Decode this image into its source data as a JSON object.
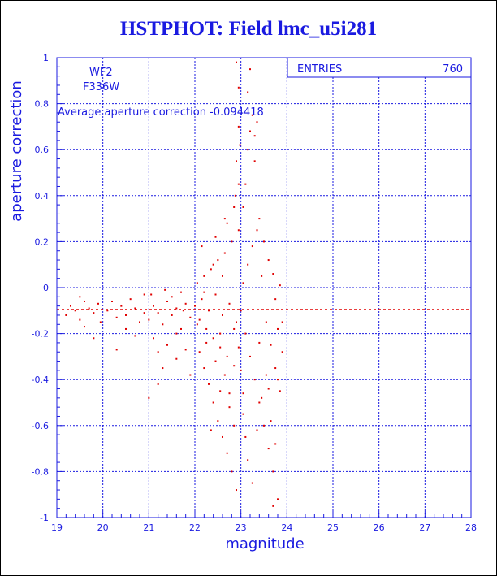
{
  "chart_data": {
    "type": "scatter",
    "title": "HSTPHOT: Field lmc_u5i281",
    "xlabel": "magnitude",
    "ylabel": "aperture correction",
    "xlim": [
      19,
      28
    ],
    "ylim": [
      -1,
      1
    ],
    "x_ticks": [
      19,
      20,
      21,
      22,
      23,
      24,
      25,
      26,
      27,
      28
    ],
    "y_ticks": [
      -1,
      -0.8,
      -0.6,
      -0.4,
      -0.2,
      0,
      0.2,
      0.4,
      0.6,
      0.8,
      1
    ],
    "y_tick_labels": [
      "-1",
      "-0.8",
      "-0.6",
      "-0.4",
      "-0.2",
      "0",
      "0.2",
      "0.4",
      "0.6",
      "0.8",
      "1"
    ],
    "grid": true,
    "annotations": {
      "camera": "WF2",
      "filter": "F336W",
      "average_text": "Average aperture correction -0.094418"
    },
    "stats_box": {
      "label": "ENTRIES",
      "value": "760",
      "placement": "top-right"
    },
    "reference_line": {
      "y": -0.094418,
      "style": "dashed",
      "color": "#e00000"
    },
    "colors": {
      "axis": "#1a1ae0",
      "points": "#e00000"
    },
    "series": [
      {
        "points": [
          [
            19.2,
            -0.12
          ],
          [
            19.3,
            -0.08
          ],
          [
            19.4,
            -0.1
          ],
          [
            19.5,
            -0.14
          ],
          [
            19.6,
            -0.06
          ],
          [
            19.7,
            -0.09
          ],
          [
            19.8,
            -0.11
          ],
          [
            19.9,
            -0.07
          ],
          [
            19.95,
            -0.15
          ],
          [
            19.6,
            -0.17
          ],
          [
            19.8,
            -0.22
          ],
          [
            19.5,
            -0.04
          ],
          [
            20.1,
            -0.1
          ],
          [
            20.2,
            -0.06
          ],
          [
            20.3,
            -0.13
          ],
          [
            20.4,
            -0.08
          ],
          [
            20.5,
            -0.12
          ],
          [
            20.6,
            -0.05
          ],
          [
            20.7,
            -0.09
          ],
          [
            20.8,
            -0.15
          ],
          [
            20.9,
            -0.11
          ],
          [
            20.3,
            -0.27
          ],
          [
            20.5,
            -0.18
          ],
          [
            20.7,
            -0.21
          ],
          [
            20.9,
            -0.03
          ],
          [
            21.0,
            -0.14
          ],
          [
            21.1,
            -0.08
          ],
          [
            21.2,
            -0.11
          ],
          [
            21.3,
            -0.16
          ],
          [
            21.4,
            -0.06
          ],
          [
            21.5,
            -0.12
          ],
          [
            21.6,
            -0.09
          ],
          [
            21.7,
            -0.18
          ],
          [
            21.8,
            -0.07
          ],
          [
            21.9,
            -0.13
          ],
          [
            21.1,
            -0.22
          ],
          [
            21.2,
            -0.28
          ],
          [
            21.4,
            -0.25
          ],
          [
            21.6,
            -0.31
          ],
          [
            21.5,
            -0.04
          ],
          [
            21.7,
            -0.02
          ],
          [
            21.3,
            -0.35
          ],
          [
            21.0,
            -0.48
          ],
          [
            21.2,
            -0.42
          ],
          [
            21.8,
            -0.27
          ],
          [
            21.9,
            -0.38
          ],
          [
            21.6,
            -0.2
          ],
          [
            21.05,
            -0.03
          ],
          [
            21.35,
            -0.01
          ],
          [
            21.75,
            -0.1
          ],
          [
            22.0,
            -0.08
          ],
          [
            22.05,
            0.02
          ],
          [
            22.1,
            -0.14
          ],
          [
            22.15,
            -0.05
          ],
          [
            22.2,
            0.05
          ],
          [
            22.25,
            -0.18
          ],
          [
            22.3,
            -0.1
          ],
          [
            22.35,
            0.08
          ],
          [
            22.4,
            -0.22
          ],
          [
            22.45,
            -0.03
          ],
          [
            22.5,
            0.12
          ],
          [
            22.55,
            -0.26
          ],
          [
            22.6,
            -0.12
          ],
          [
            22.65,
            0.15
          ],
          [
            22.7,
            -0.3
          ],
          [
            22.75,
            -0.07
          ],
          [
            22.8,
            0.2
          ],
          [
            22.85,
            -0.34
          ],
          [
            22.9,
            -0.15
          ],
          [
            22.95,
            0.25
          ],
          [
            22.1,
            -0.28
          ],
          [
            22.2,
            -0.35
          ],
          [
            22.3,
            -0.42
          ],
          [
            22.4,
            -0.5
          ],
          [
            22.5,
            -0.58
          ],
          [
            22.6,
            -0.65
          ],
          [
            22.7,
            -0.72
          ],
          [
            22.8,
            -0.8
          ],
          [
            22.9,
            -0.88
          ],
          [
            22.35,
            -0.62
          ],
          [
            22.55,
            -0.45
          ],
          [
            22.75,
            -0.52
          ],
          [
            22.85,
            -0.6
          ],
          [
            22.15,
            0.18
          ],
          [
            22.45,
            0.22
          ],
          [
            22.65,
            0.3
          ],
          [
            22.85,
            0.35
          ],
          [
            22.95,
            0.45
          ],
          [
            22.9,
            0.55
          ],
          [
            22.95,
            0.7
          ],
          [
            22.9,
            0.98
          ],
          [
            22.95,
            0.87
          ],
          [
            22.98,
            0.62
          ],
          [
            22.88,
            0.4
          ],
          [
            22.7,
            0.28
          ],
          [
            22.6,
            0.05
          ],
          [
            22.4,
            0.1
          ],
          [
            22.2,
            -0.02
          ],
          [
            23.0,
            -0.1
          ],
          [
            23.05,
            0.02
          ],
          [
            23.1,
            -0.2
          ],
          [
            23.15,
            0.1
          ],
          [
            23.2,
            -0.3
          ],
          [
            23.25,
            0.18
          ],
          [
            23.3,
            -0.4
          ],
          [
            23.35,
            0.25
          ],
          [
            23.4,
            -0.5
          ],
          [
            23.45,
            0.05
          ],
          [
            23.5,
            -0.6
          ],
          [
            23.55,
            -0.15
          ],
          [
            23.6,
            -0.7
          ],
          [
            23.65,
            -0.25
          ],
          [
            23.7,
            -0.8
          ],
          [
            23.75,
            -0.35
          ],
          [
            23.8,
            -0.92
          ],
          [
            23.85,
            -0.45
          ],
          [
            23.05,
            0.35
          ],
          [
            23.1,
            0.45
          ],
          [
            23.15,
            0.6
          ],
          [
            23.2,
            0.68
          ],
          [
            23.25,
            0.75
          ],
          [
            23.3,
            0.66
          ],
          [
            23.35,
            0.72
          ],
          [
            23.2,
            0.95
          ],
          [
            23.15,
            0.85
          ],
          [
            23.3,
            0.55
          ],
          [
            23.4,
            0.3
          ],
          [
            23.5,
            0.2
          ],
          [
            23.6,
            0.12
          ],
          [
            23.7,
            0.06
          ],
          [
            23.75,
            -0.05
          ],
          [
            23.8,
            -0.18
          ],
          [
            23.85,
            0.01
          ],
          [
            23.9,
            -0.28
          ],
          [
            23.05,
            -0.55
          ],
          [
            23.1,
            -0.65
          ],
          [
            23.15,
            -0.75
          ],
          [
            23.25,
            -0.85
          ],
          [
            23.35,
            -0.62
          ],
          [
            23.45,
            -0.48
          ],
          [
            23.55,
            -0.38
          ],
          [
            23.65,
            -0.58
          ],
          [
            23.75,
            -0.68
          ],
          [
            23.7,
            -0.95
          ],
          [
            23.8,
            -0.4
          ],
          [
            23.9,
            -0.15
          ],
          [
            22.55,
            -0.2
          ],
          [
            22.65,
            -0.38
          ],
          [
            22.75,
            -0.46
          ],
          [
            22.95,
            -0.26
          ],
          [
            23.0,
            -0.36
          ],
          [
            23.05,
            -0.46
          ],
          [
            22.85,
            -0.18
          ],
          [
            22.45,
            -0.32
          ],
          [
            22.25,
            -0.24
          ],
          [
            22.05,
            -0.16
          ],
          [
            23.4,
            -0.24
          ],
          [
            23.6,
            -0.44
          ]
        ]
      }
    ]
  }
}
